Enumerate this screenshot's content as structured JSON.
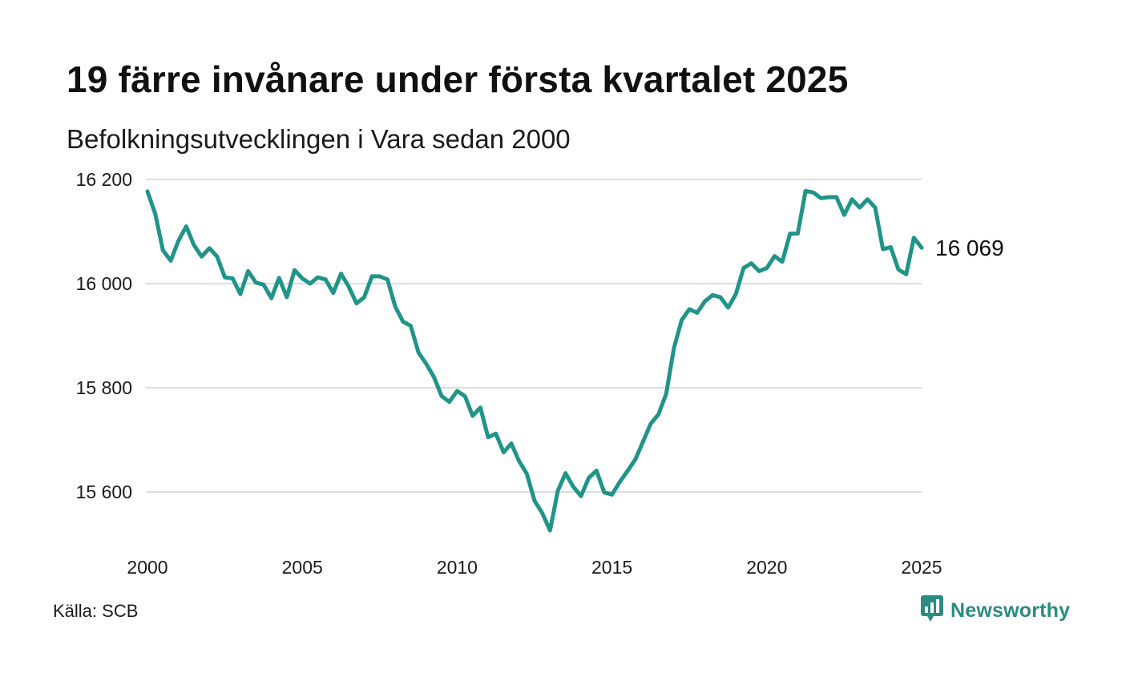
{
  "header": {
    "title": "19 färre invånare under första kvartalet 2025",
    "subtitle": "Befolkningsutvecklingen i Vara sedan 2000"
  },
  "footer": {
    "source": "Källa: SCB",
    "brand": "Newsworthy",
    "brand_icon": "bar-chart-bubble-icon"
  },
  "colors": {
    "line": "#1f9488",
    "grid": "#dddddd",
    "brand": "#2a8c82"
  },
  "chart_data": {
    "type": "line",
    "title": "19 färre invånare under första kvartalet 2025",
    "subtitle": "Befolkningsutvecklingen i Vara sedan 2000",
    "xlabel": "",
    "ylabel": "",
    "xlim": [
      2000,
      2025.0
    ],
    "ylim": [
      15520,
      16200
    ],
    "x_ticks": [
      2000,
      2005,
      2010,
      2015,
      2020,
      2025
    ],
    "x_tick_labels": [
      "2000",
      "2005",
      "2010",
      "2015",
      "2020",
      "2025"
    ],
    "y_ticks": [
      15600,
      15800,
      16000,
      16200
    ],
    "y_tick_labels": [
      "15 600",
      "15 800",
      "16 000",
      "16 200"
    ],
    "grid": "horizontal",
    "end_label": "16 069",
    "series": [
      {
        "x": [
          2000.0,
          2000.25,
          2000.5,
          2000.75,
          2001.0,
          2001.25,
          2001.5,
          2001.75,
          2002.0,
          2002.25,
          2002.5,
          2002.75,
          2003.0,
          2003.25,
          2003.5,
          2003.75,
          2004.0,
          2004.25,
          2004.5,
          2004.75,
          2005.0,
          2005.25,
          2005.5,
          2005.75,
          2006.0,
          2006.25,
          2006.5,
          2006.75,
          2007.0,
          2007.25,
          2007.5,
          2007.75,
          2008.0,
          2008.25,
          2008.5,
          2008.75,
          2009.0,
          2009.25,
          2009.5,
          2009.75,
          2010.0,
          2010.25,
          2010.5,
          2010.75,
          2011.0,
          2011.25,
          2011.5,
          2011.75,
          2012.0,
          2012.25,
          2012.5,
          2012.75,
          2013.0,
          2013.25,
          2013.5,
          2013.75,
          2014.0,
          2014.25,
          2014.5,
          2014.75,
          2015.0,
          2015.25,
          2015.5,
          2015.75,
          2016.0,
          2016.25,
          2016.5,
          2016.75,
          2017.0,
          2017.25,
          2017.5,
          2017.75,
          2018.0,
          2018.25,
          2018.5,
          2018.75,
          2019.0,
          2019.25,
          2019.5,
          2019.75,
          2020.0,
          2020.25,
          2020.5,
          2020.75,
          2021.0,
          2021.25,
          2021.5,
          2021.75,
          2022.0,
          2022.25,
          2022.5,
          2022.75,
          2023.0,
          2023.25,
          2023.5,
          2023.75,
          2024.0,
          2024.25,
          2024.5,
          2024.75,
          2025.0
        ],
        "values": [
          16177,
          16134,
          16064,
          16044,
          16082,
          16110,
          16074,
          16052,
          16068,
          16052,
          16012,
          16010,
          15980,
          16024,
          16002,
          15998,
          15972,
          16011,
          15974,
          16026,
          16010,
          16000,
          16012,
          16008,
          15982,
          16019,
          15994,
          15962,
          15974,
          16014,
          16014,
          16008,
          15956,
          15927,
          15919,
          15868,
          15846,
          15821,
          15784,
          15773,
          15794,
          15784,
          15746,
          15762,
          15705,
          15712,
          15676,
          15693,
          15659,
          15635,
          15583,
          15559,
          15526,
          15602,
          15636,
          15610,
          15592,
          15627,
          15641,
          15599,
          15595,
          15619,
          15640,
          15662,
          15696,
          15731,
          15749,
          15788,
          15876,
          15930,
          15951,
          15944,
          15966,
          15978,
          15974,
          15954,
          15980,
          16030,
          16039,
          16024,
          16030,
          16053,
          16042,
          16096,
          16096,
          16178,
          16175,
          16164,
          16166,
          16166,
          16132,
          16162,
          16146,
          16162,
          16146,
          16066,
          16070,
          16027,
          16018,
          16088,
          16069
        ]
      }
    ]
  }
}
